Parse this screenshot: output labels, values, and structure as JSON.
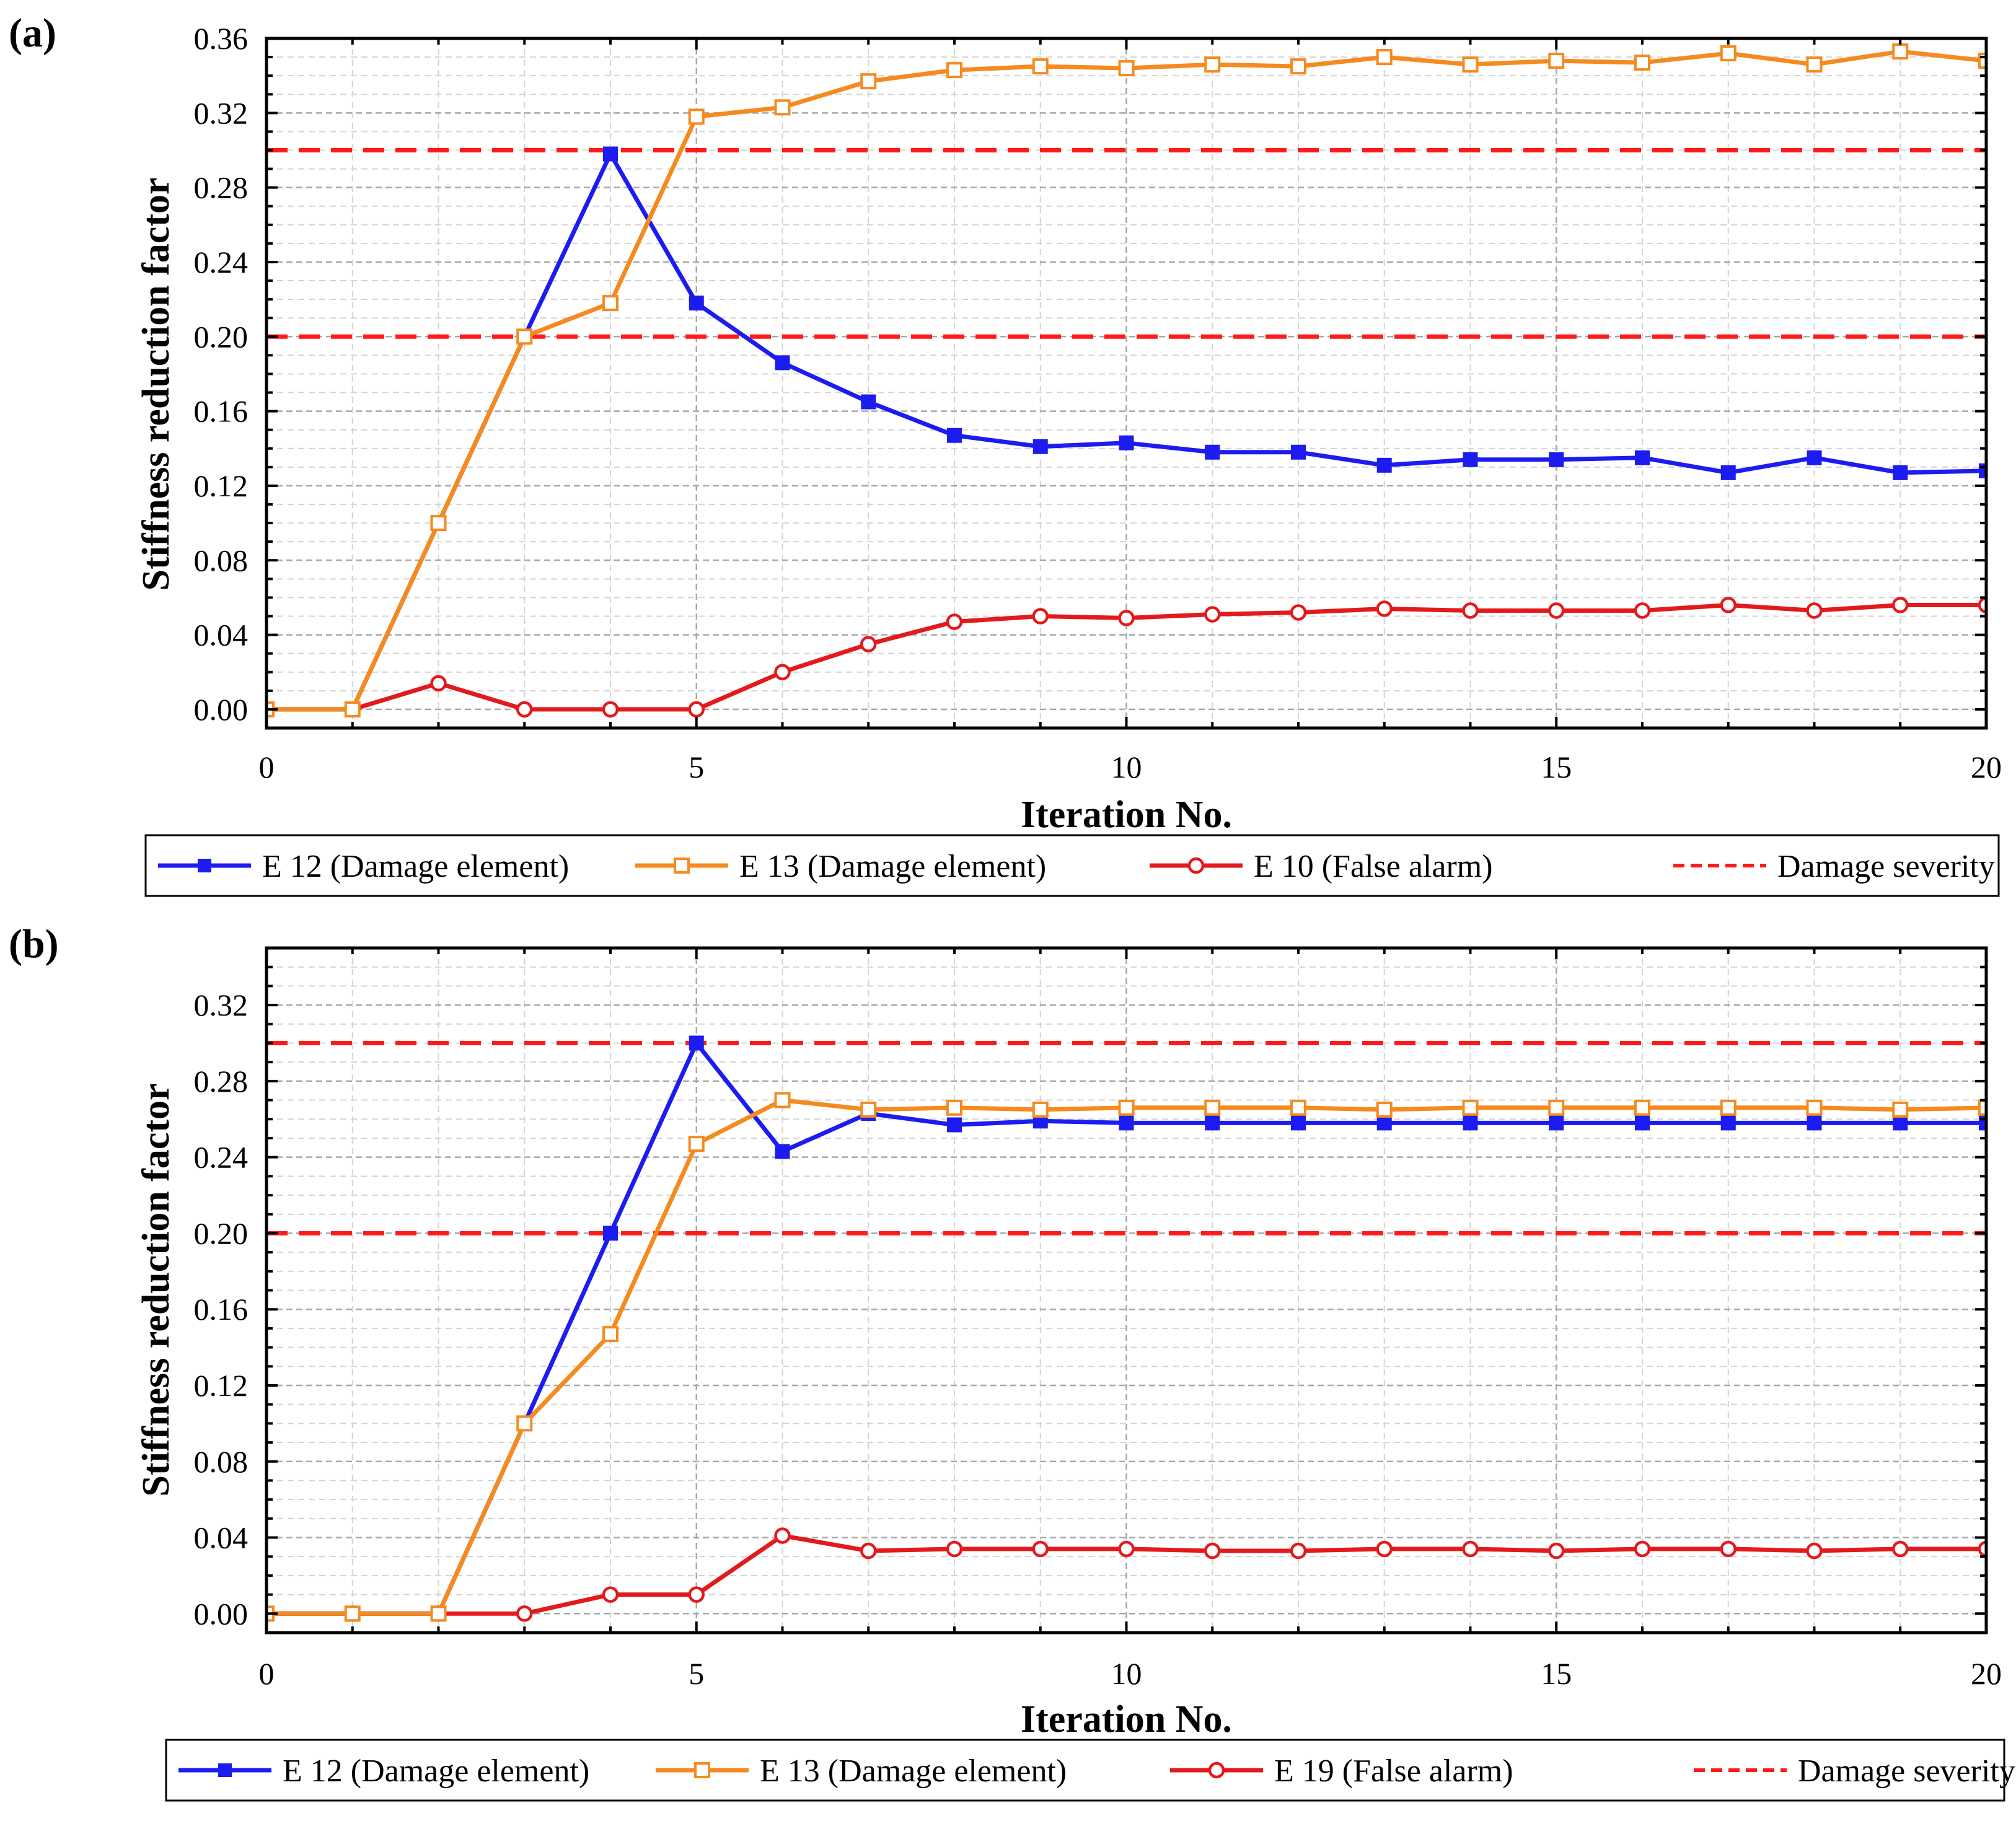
{
  "chart_data": [
    {
      "panel_label": "(a)",
      "type": "line",
      "xlabel": "Iteration No.",
      "ylabel": "Stiffness reduction factor",
      "xlim": [
        0,
        20
      ],
      "ylim": [
        -0.01,
        0.36
      ],
      "xticks": [
        0,
        5,
        10,
        15,
        20
      ],
      "xtick_labels": [
        "0",
        "5",
        "10",
        "15",
        "20"
      ],
      "yticks": [
        0.0,
        0.04,
        0.08,
        0.12,
        0.16,
        0.2,
        0.24,
        0.28,
        0.32,
        0.36
      ],
      "ytick_labels": [
        "0.00",
        "0.04",
        "0.08",
        "0.12",
        "0.16",
        "0.20",
        "0.24",
        "0.28",
        "0.32",
        "0.36"
      ],
      "grid": true,
      "x": [
        0,
        1,
        2,
        3,
        4,
        5,
        6,
        7,
        8,
        9,
        10,
        11,
        12,
        13,
        14,
        15,
        16,
        17,
        18,
        19,
        20
      ],
      "series": [
        {
          "name": "E 12 (Damage element)",
          "color": "#1c1cf0",
          "marker": "filled-square",
          "values": [
            0,
            0,
            0.1,
            0.2,
            0.298,
            0.218,
            0.186,
            0.165,
            0.147,
            0.141,
            0.143,
            0.138,
            0.138,
            0.131,
            0.134,
            0.134,
            0.135,
            0.127,
            0.135,
            0.127,
            0.128
          ]
        },
        {
          "name": "E 13 (Damage element)",
          "color": "#f58a1f",
          "marker": "open-square",
          "values": [
            0,
            0,
            0.1,
            0.2,
            0.218,
            0.318,
            0.323,
            0.337,
            0.343,
            0.345,
            0.344,
            0.346,
            0.345,
            0.35,
            0.346,
            0.348,
            0.347,
            0.352,
            0.346,
            0.353,
            0.348
          ]
        },
        {
          "name": "E 10 (False alarm)",
          "color": "#e31a1c",
          "marker": "open-circle",
          "values": [
            0,
            0,
            0.014,
            0,
            0,
            0,
            0.02,
            0.035,
            0.047,
            0.05,
            0.049,
            0.051,
            0.052,
            0.054,
            0.053,
            0.053,
            0.053,
            0.056,
            0.053,
            0.056,
            0.056
          ]
        }
      ],
      "reference_lines": {
        "name": "Damage severity",
        "color": "#ff1a1a",
        "values": [
          0.2,
          0.3
        ]
      },
      "legend": [
        "E 12 (Damage element)",
        "E 13 (Damage element)",
        "E 10 (False alarm)",
        "Damage severity"
      ]
    },
    {
      "panel_label": "(b)",
      "type": "line",
      "xlabel": "Iteration No.",
      "ylabel": "Stiffness reduction factor",
      "xlim": [
        0,
        20
      ],
      "ylim": [
        -0.01,
        0.35
      ],
      "xticks": [
        0,
        5,
        10,
        15,
        20
      ],
      "xtick_labels": [
        "0",
        "5",
        "10",
        "15",
        "20"
      ],
      "yticks": [
        0.0,
        0.04,
        0.08,
        0.12,
        0.16,
        0.2,
        0.24,
        0.28,
        0.32
      ],
      "ytick_labels": [
        "0.00",
        "0.04",
        "0.08",
        "0.12",
        "0.16",
        "0.20",
        "0.24",
        "0.28",
        "0.32"
      ],
      "grid": true,
      "x": [
        0,
        1,
        2,
        3,
        4,
        5,
        6,
        7,
        8,
        9,
        10,
        11,
        12,
        13,
        14,
        15,
        16,
        17,
        18,
        19,
        20
      ],
      "series": [
        {
          "name": "E 12 (Damage element)",
          "color": "#1c1cf0",
          "marker": "filled-square",
          "values": [
            0,
            0,
            0,
            0.1,
            0.2,
            0.3,
            0.243,
            0.263,
            0.257,
            0.259,
            0.258,
            0.258,
            0.258,
            0.258,
            0.258,
            0.258,
            0.258,
            0.258,
            0.258,
            0.258,
            0.258
          ]
        },
        {
          "name": "E 13 (Damage element)",
          "color": "#f58a1f",
          "marker": "open-square",
          "values": [
            0,
            0,
            0,
            0.1,
            0.147,
            0.247,
            0.27,
            0.265,
            0.266,
            0.265,
            0.266,
            0.266,
            0.266,
            0.265,
            0.266,
            0.266,
            0.266,
            0.266,
            0.266,
            0.265,
            0.266
          ]
        },
        {
          "name": "E 19 (False alarm)",
          "color": "#e31a1c",
          "marker": "open-circle",
          "values": [
            0,
            0,
            0,
            0,
            0.01,
            0.01,
            0.041,
            0.033,
            0.034,
            0.034,
            0.034,
            0.033,
            0.033,
            0.034,
            0.034,
            0.033,
            0.034,
            0.034,
            0.033,
            0.034,
            0.034
          ]
        }
      ],
      "reference_lines": {
        "name": "Damage severity",
        "color": "#ff1a1a",
        "values": [
          0.2,
          0.3
        ]
      },
      "legend": [
        "E 12 (Damage element)",
        "E 13 (Damage element)",
        "E 19 (False alarm)",
        "Damage severity"
      ]
    }
  ]
}
